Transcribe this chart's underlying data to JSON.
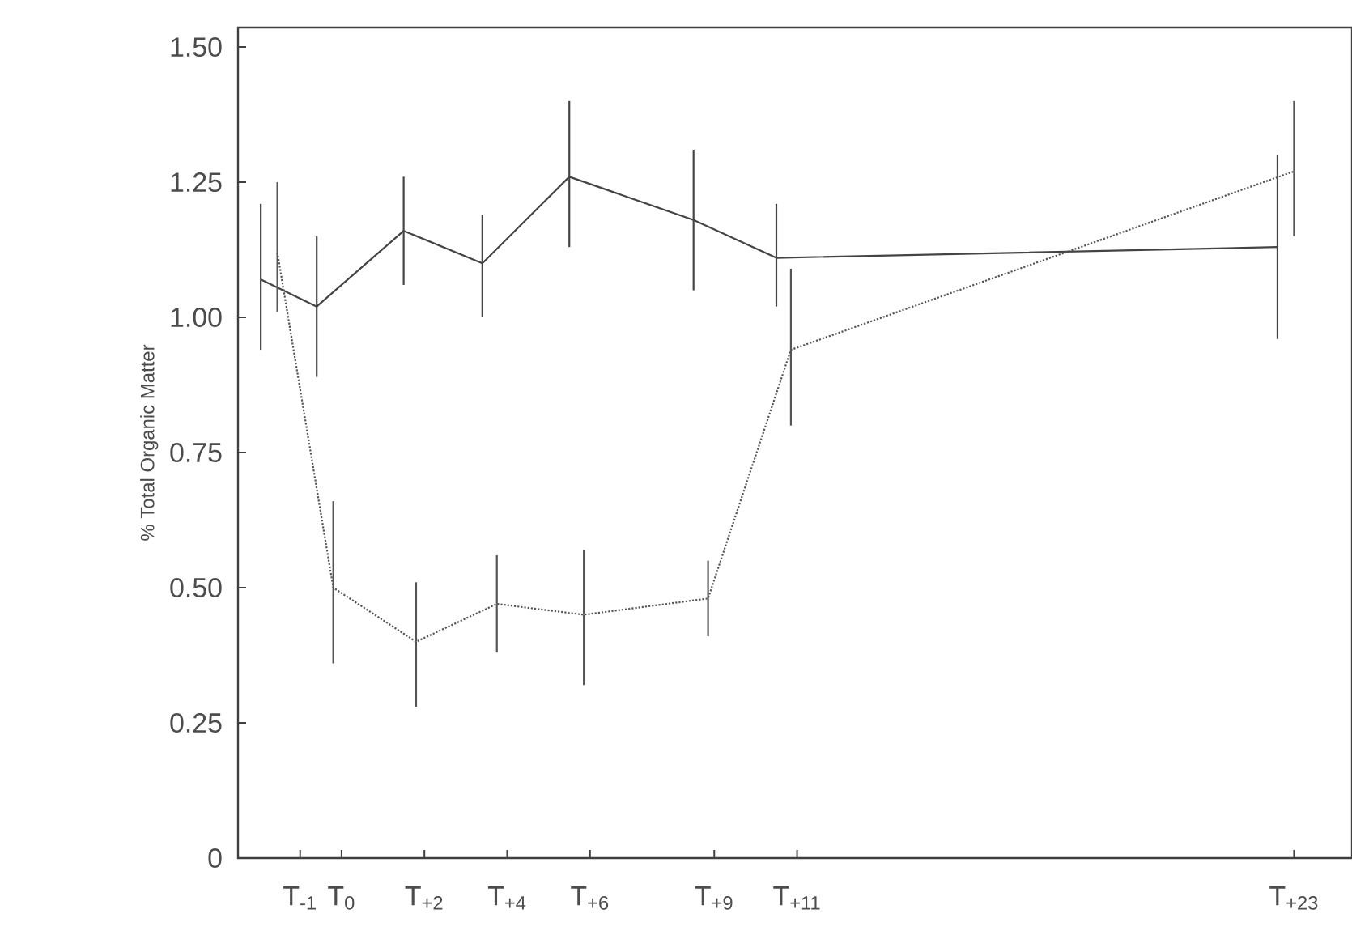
{
  "chart_data": {
    "type": "line",
    "ylabel": "% Total Organic Matter",
    "xlim": [
      -2.5,
      24.4
    ],
    "ylim": [
      0,
      1.536
    ],
    "xticks": [
      {
        "value": -1,
        "label": "T$_{-1}$"
      },
      {
        "value": 0,
        "label": "T$_{0}$"
      },
      {
        "value": 2,
        "label": "T$_{+2}$"
      },
      {
        "value": 4,
        "label": "T$_{+4}$"
      },
      {
        "value": 6,
        "label": "T$_{+6}$"
      },
      {
        "value": 9,
        "label": "T$_{+9}$"
      },
      {
        "value": 11,
        "label": "T$_{+11}$"
      },
      {
        "value": 23,
        "label": "T$_{+23}$"
      }
    ],
    "yticks": [
      {
        "value": 0,
        "label": "0"
      },
      {
        "value": 0.25,
        "label": "0.25"
      },
      {
        "value": 0.5,
        "label": "0.50"
      },
      {
        "value": 0.75,
        "label": "0.75"
      },
      {
        "value": 1,
        "label": "1.00"
      },
      {
        "value": 1.25,
        "label": "1.25"
      },
      {
        "value": 1.5,
        "label": "1.50"
      }
    ],
    "marker": "none",
    "series": [
      {
        "color": "#444444",
        "line_style": "solid",
        "x": [
          -1.95,
          -0.6,
          1.5,
          3.4,
          5.5,
          8.5,
          10.5,
          22.6
        ],
        "values": [
          1.07,
          1.02,
          1.16,
          1.1,
          1.26,
          1.18,
          1.11,
          1.13
        ],
        "errors": [
          [
            0.94,
            1.21
          ],
          [
            0.89,
            1.15
          ],
          [
            1.06,
            1.26
          ],
          [
            1.0,
            1.19
          ],
          [
            1.13,
            1.4
          ],
          [
            1.05,
            1.31
          ],
          [
            1.02,
            1.21
          ],
          [
            0.96,
            1.3
          ]
        ]
      },
      {
        "color": "#555555",
        "line_style": "dotted",
        "x": [
          -1.55,
          -0.2,
          1.8,
          3.75,
          5.85,
          8.85,
          10.85,
          23.0
        ],
        "values": [
          1.12,
          0.5,
          0.4,
          0.47,
          0.45,
          0.48,
          0.94,
          1.27
        ],
        "errors": [
          [
            1.01,
            1.25
          ],
          [
            0.36,
            0.66
          ],
          [
            0.28,
            0.51
          ],
          [
            0.38,
            0.56
          ],
          [
            0.32,
            0.57
          ],
          [
            0.41,
            0.55
          ],
          [
            0.8,
            1.09
          ],
          [
            1.15,
            1.4
          ]
        ]
      }
    ]
  }
}
